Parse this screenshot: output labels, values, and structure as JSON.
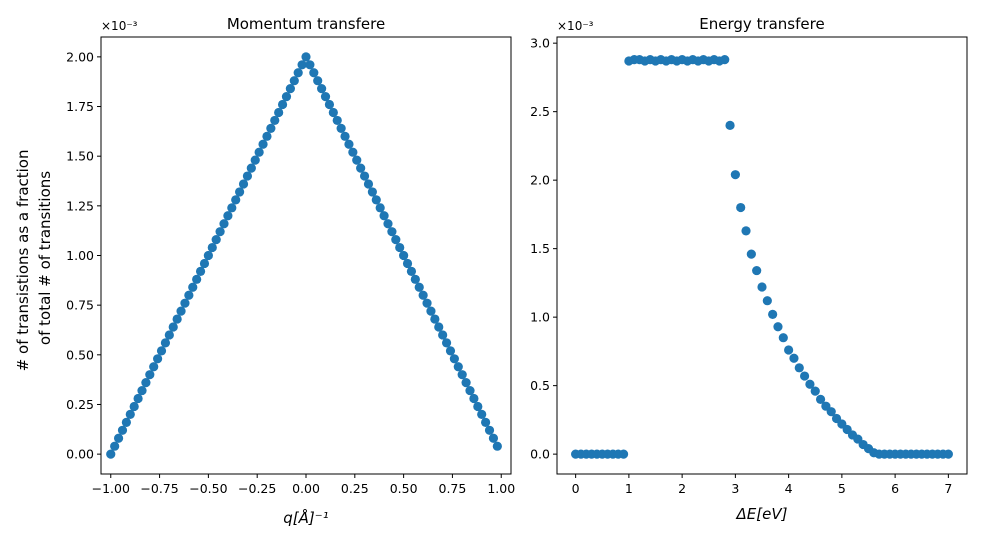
{
  "chart_data": [
    {
      "type": "scatter",
      "title": "Momentum transfere",
      "xlabel": "q[Å]⁻¹",
      "ylabel": "# of transistions as a fraction\nof total # of transitions",
      "y_multiplier_label": "×10⁻³",
      "xlim": [
        -1.05,
        1.05
      ],
      "ylim": [
        -0.1,
        2.1
      ],
      "xticks": [
        -1.0,
        -0.75,
        -0.5,
        -0.25,
        0.0,
        0.25,
        0.5,
        0.75,
        1.0
      ],
      "xtick_labels": [
        "−1.00",
        "−0.75",
        "−0.50",
        "−0.25",
        "0.00",
        "0.25",
        "0.50",
        "0.75",
        "1.00"
      ],
      "yticks": [
        0.0,
        0.25,
        0.5,
        0.75,
        1.0,
        1.25,
        1.5,
        1.75,
        2.0
      ],
      "ytick_labels": [
        "0.00",
        "0.25",
        "0.50",
        "0.75",
        "1.00",
        "1.25",
        "1.50",
        "1.75",
        "2.00"
      ],
      "marker_color": "#1f77b4",
      "series": [
        {
          "x": [
            -1.0,
            -0.98,
            -0.96,
            -0.94,
            -0.92,
            -0.9,
            -0.88,
            -0.86,
            -0.84,
            -0.82,
            -0.8,
            -0.78,
            -0.76,
            -0.74,
            -0.72,
            -0.7,
            -0.68,
            -0.66,
            -0.64,
            -0.62,
            -0.6,
            -0.58,
            -0.56,
            -0.54,
            -0.52,
            -0.5,
            -0.48,
            -0.46,
            -0.44,
            -0.42,
            -0.4,
            -0.38,
            -0.36,
            -0.34,
            -0.32,
            -0.3,
            -0.28,
            -0.26,
            -0.24,
            -0.22,
            -0.2,
            -0.18,
            -0.16,
            -0.14,
            -0.12,
            -0.1,
            -0.08,
            -0.06,
            -0.04,
            -0.02,
            0.0,
            0.02,
            0.04,
            0.06,
            0.08,
            0.1,
            0.12,
            0.14,
            0.16,
            0.18,
            0.2,
            0.22,
            0.24,
            0.26,
            0.28,
            0.3,
            0.32,
            0.34,
            0.36,
            0.38,
            0.4,
            0.42,
            0.44,
            0.46,
            0.48,
            0.5,
            0.52,
            0.54,
            0.56,
            0.58,
            0.6,
            0.62,
            0.64,
            0.66,
            0.68,
            0.7,
            0.72,
            0.74,
            0.76,
            0.78,
            0.8,
            0.82,
            0.84,
            0.86,
            0.88,
            0.9,
            0.92,
            0.94,
            0.96,
            0.98
          ],
          "y": [
            0.0,
            0.04,
            0.08,
            0.12,
            0.16,
            0.2,
            0.24,
            0.28,
            0.32,
            0.36,
            0.4,
            0.44,
            0.48,
            0.52,
            0.56,
            0.6,
            0.64,
            0.68,
            0.72,
            0.76,
            0.8,
            0.84,
            0.88,
            0.92,
            0.96,
            1.0,
            1.04,
            1.08,
            1.12,
            1.16,
            1.2,
            1.24,
            1.28,
            1.32,
            1.36,
            1.4,
            1.44,
            1.48,
            1.52,
            1.56,
            1.6,
            1.64,
            1.68,
            1.72,
            1.76,
            1.8,
            1.84,
            1.88,
            1.92,
            1.96,
            2.0,
            1.96,
            1.92,
            1.88,
            1.84,
            1.8,
            1.76,
            1.72,
            1.68,
            1.64,
            1.6,
            1.56,
            1.52,
            1.48,
            1.44,
            1.4,
            1.36,
            1.32,
            1.28,
            1.24,
            1.2,
            1.16,
            1.12,
            1.08,
            1.04,
            1.0,
            0.96,
            0.92,
            0.88,
            0.84,
            0.8,
            0.76,
            0.72,
            0.68,
            0.64,
            0.6,
            0.56,
            0.52,
            0.48,
            0.44,
            0.4,
            0.36,
            0.32,
            0.28,
            0.24,
            0.2,
            0.16,
            0.12,
            0.08,
            0.04
          ]
        }
      ]
    },
    {
      "type": "scatter",
      "title": "Energy transfere",
      "xlabel": "ΔE[eV]",
      "ylabel": "",
      "y_multiplier_label": "×10⁻³",
      "xlim": [
        -0.35,
        7.35
      ],
      "ylim": [
        -0.145,
        3.045
      ],
      "xticks": [
        0,
        1,
        2,
        3,
        4,
        5,
        6,
        7
      ],
      "xtick_labels": [
        "0",
        "1",
        "2",
        "3",
        "4",
        "5",
        "6",
        "7"
      ],
      "yticks": [
        0.0,
        0.5,
        1.0,
        1.5,
        2.0,
        2.5,
        3.0
      ],
      "ytick_labels": [
        "0.0",
        "0.5",
        "1.0",
        "1.5",
        "2.0",
        "2.5",
        "3.0"
      ],
      "marker_color": "#1f77b4",
      "series": [
        {
          "x": [
            0.0,
            0.1,
            0.2,
            0.3,
            0.4,
            0.5,
            0.6,
            0.7,
            0.8,
            0.9,
            1.0,
            1.1,
            1.2,
            1.3,
            1.4,
            1.5,
            1.6,
            1.7,
            1.8,
            1.9,
            2.0,
            2.1,
            2.2,
            2.3,
            2.4,
            2.5,
            2.6,
            2.7,
            2.8,
            2.9,
            3.0,
            3.1,
            3.2,
            3.3,
            3.4,
            3.5,
            3.6,
            3.7,
            3.8,
            3.9,
            4.0,
            4.1,
            4.2,
            4.3,
            4.4,
            4.5,
            4.6,
            4.7,
            4.8,
            4.9,
            5.0,
            5.1,
            5.2,
            5.3,
            5.4,
            5.5,
            5.6,
            5.7,
            5.8,
            5.9,
            6.0,
            6.1,
            6.2,
            6.3,
            6.4,
            6.5,
            6.6,
            6.7,
            6.8,
            6.9,
            7.0
          ],
          "y": [
            0.0,
            0.0,
            0.0,
            0.0,
            0.0,
            0.0,
            0.0,
            0.0,
            0.0,
            0.0,
            2.87,
            2.88,
            2.88,
            2.87,
            2.88,
            2.87,
            2.88,
            2.87,
            2.88,
            2.87,
            2.88,
            2.87,
            2.88,
            2.87,
            2.88,
            2.87,
            2.88,
            2.87,
            2.88,
            2.4,
            2.04,
            1.8,
            1.63,
            1.46,
            1.34,
            1.22,
            1.12,
            1.02,
            0.93,
            0.85,
            0.76,
            0.7,
            0.63,
            0.57,
            0.51,
            0.46,
            0.4,
            0.35,
            0.31,
            0.26,
            0.22,
            0.18,
            0.14,
            0.11,
            0.07,
            0.04,
            0.01,
            0.0,
            0.0,
            0.0,
            0.0,
            0.0,
            0.0,
            0.0,
            0.0,
            0.0,
            0.0,
            0.0,
            0.0,
            0.0,
            0.0
          ]
        }
      ]
    }
  ]
}
